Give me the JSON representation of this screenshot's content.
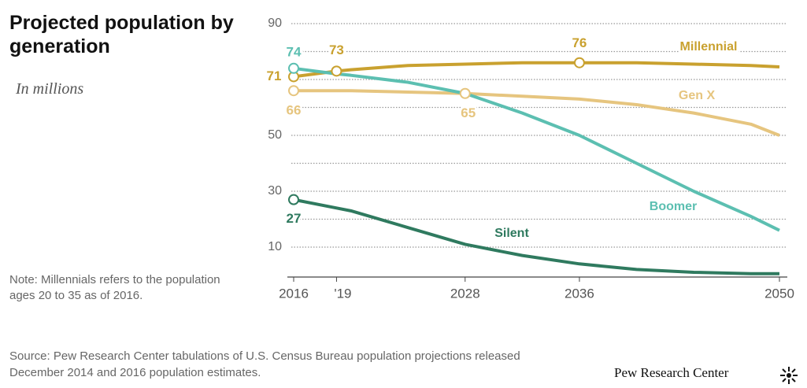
{
  "chart_data": {
    "type": "line",
    "title": "Projected population by generation",
    "subtitle": "In millions",
    "note": "Note: Millennials refers to the population ages 20 to 35 as of 2016.",
    "source": "Source: Pew Research Center tabulations of U.S. Census Bureau population projections released December 2014 and 2016 population estimates.",
    "credit": "Pew Research Center",
    "x": [
      2016,
      2019,
      2020,
      2024,
      2028,
      2032,
      2036,
      2040,
      2044,
      2048,
      2050
    ],
    "xlim": [
      2016,
      2050
    ],
    "xticks": [
      2016,
      {
        "value": 2019,
        "label": "'19"
      },
      2028,
      2036,
      2050
    ],
    "ylim": [
      0,
      90
    ],
    "yticks": [
      10,
      30,
      50,
      90
    ],
    "minor_gridlines": [
      20,
      40,
      60,
      70,
      80
    ],
    "grid": "dotted",
    "series": [
      {
        "name": "Millennial",
        "color": "#c9a12f",
        "values": [
          71,
          73,
          73.5,
          75,
          75.5,
          76,
          76,
          76,
          75.5,
          75,
          74.5
        ],
        "labeled_points": [
          0,
          1,
          6
        ]
      },
      {
        "name": "Gen X",
        "color": "#e6c57f",
        "values": [
          66,
          66,
          66,
          65.5,
          65,
          64,
          63,
          61,
          58,
          54,
          50
        ],
        "labeled_points": [
          0,
          4
        ]
      },
      {
        "name": "Boomer",
        "color": "#5cbfb1",
        "values": [
          74,
          72,
          71.5,
          69,
          65,
          58,
          50,
          40,
          30,
          21,
          16
        ],
        "labeled_points": [
          0
        ]
      },
      {
        "name": "Silent",
        "color": "#2f7a5f",
        "values": [
          27,
          24,
          23,
          17,
          11,
          7,
          4,
          2,
          1,
          0.5,
          0.5
        ],
        "labeled_points": [
          0
        ]
      }
    ]
  }
}
